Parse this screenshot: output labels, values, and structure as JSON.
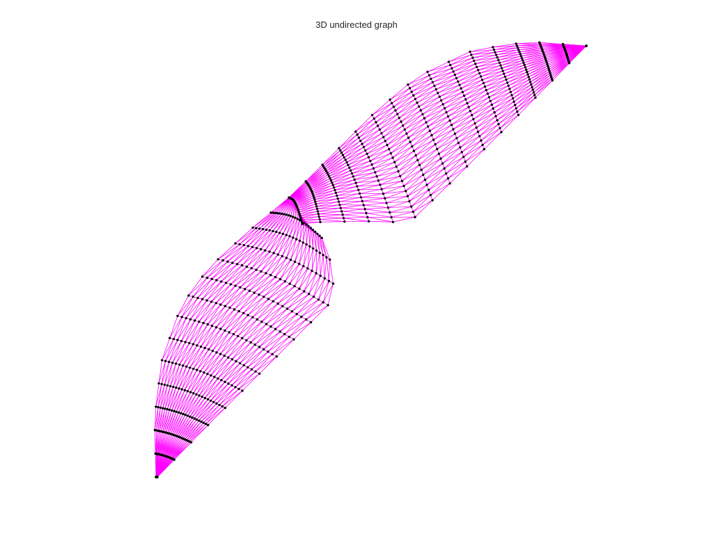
{
  "figure": {
    "title": "3D undirected graph"
  },
  "graph": {
    "type": "undirected-graph-mesh",
    "edge_color": "#ff00ff",
    "node_color": "#000000",
    "mesh_rows": 30,
    "mesh_cols": 24
  }
}
